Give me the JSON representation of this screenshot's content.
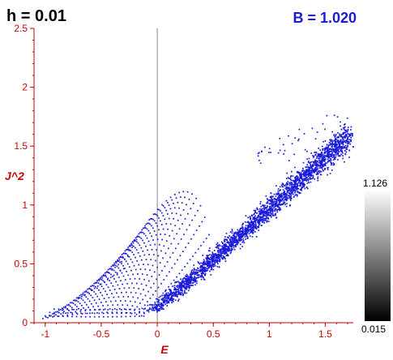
{
  "chart_data": {
    "type": "scatter",
    "title_left": "h = 0.01",
    "title_right": "B = 1.020",
    "xlabel": "E",
    "ylabel": "J^2",
    "xlim": [
      -1.1,
      1.75
    ],
    "ylim": [
      0,
      2.5
    ],
    "x_ticks": [
      -1,
      -0.5,
      0,
      0.5,
      1,
      1.5
    ],
    "x_tick_labels": [
      "-1",
      "-0.5",
      "0",
      "0.5",
      "1",
      "1.5"
    ],
    "y_ticks": [
      0,
      0.5,
      1,
      1.5,
      2,
      2.5
    ],
    "y_tick_labels": [
      "0",
      "0.5",
      "1",
      "1.5",
      "2",
      "2.5"
    ],
    "vertical_reference_line_x": 0,
    "point_color": "#1a1ad9",
    "regular_family": {
      "description_free": true,
      "arcs": 26,
      "points_per_arc": 22,
      "j2_max_at_top": 1.22,
      "e_left_bottom": -1.05,
      "e_apex_region": [
        0.2,
        0.5
      ]
    },
    "chaotic_band": {
      "start": [
        -0.05,
        0.1
      ],
      "end": [
        1.72,
        1.6
      ],
      "spread_j2": 0.14,
      "n_points": 2600
    },
    "colorbar": {
      "max_label": "1.126",
      "min_label": "0.015",
      "gradient": [
        "#000000",
        "#ffffff"
      ]
    }
  }
}
